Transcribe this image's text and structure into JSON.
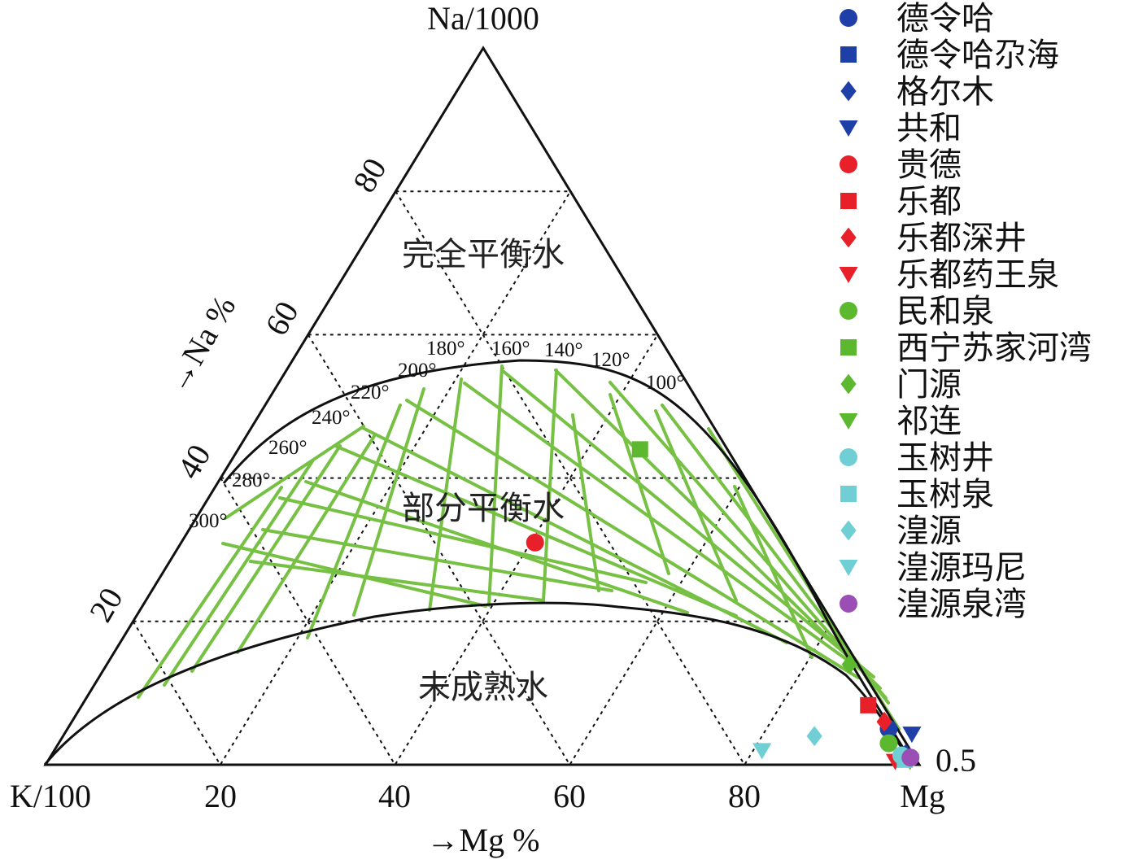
{
  "chart_data": {
    "type": "ternary-scatter",
    "vertex_labels": {
      "top": "Na/1000",
      "left": "K/100",
      "right": "Mg"
    },
    "axis_labels": {
      "bottom": "→Mg %",
      "left": "→Na %"
    },
    "bottom_ticks": [
      "20",
      "40",
      "60",
      "80"
    ],
    "left_ticks": [
      "20",
      "40",
      "60",
      "80"
    ],
    "corner_note": "0.5",
    "zone_labels": {
      "full": "完全平衡水",
      "partial": "部分平衡水",
      "immature": "未成熟水"
    },
    "isotherm_labels": [
      "300°",
      "280°",
      "260°",
      "240°",
      "220°",
      "200°",
      "180°",
      "160°",
      "140°",
      "120°",
      "100°"
    ],
    "grid_levels": [
      20,
      40,
      60,
      80
    ],
    "legend_position": "right",
    "colors": {
      "blue": "#1f3fa8",
      "red": "#e8202a",
      "green": "#5cb82e",
      "cyan": "#6fcfd4",
      "purple": "#9b4fb5",
      "isotherm": "#76c043"
    },
    "series": [
      {
        "name": "德令哈",
        "marker": "circle",
        "color": "#1f3fa8",
        "points": [
          [
            94,
            5
          ]
        ]
      },
      {
        "name": "德令哈尕海",
        "marker": "square",
        "color": "#1f3fa8",
        "points": [
          [
            97.5,
            1.2
          ]
        ]
      },
      {
        "name": "格尔木",
        "marker": "diamond",
        "color": "#1f3fa8",
        "points": [
          [
            97.7,
            1.5
          ]
        ]
      },
      {
        "name": "共和",
        "marker": "triangle-down",
        "color": "#1f3fa8",
        "points": [
          [
            97,
            4.3
          ]
        ]
      },
      {
        "name": "贵德",
        "marker": "circle",
        "color": "#e8202a",
        "points": [
          [
            40.5,
            31
          ]
        ]
      },
      {
        "name": "乐都",
        "marker": "square",
        "color": "#e8202a",
        "points": [
          [
            90,
            8.3
          ]
        ]
      },
      {
        "name": "乐都深井",
        "marker": "diamond",
        "color": "#e8202a",
        "points": [
          [
            93,
            6
          ]
        ]
      },
      {
        "name": "乐都药王泉",
        "marker": "triangle-down",
        "color": "#e8202a",
        "points": [
          [
            97,
            0.5
          ]
        ]
      },
      {
        "name": "民和泉",
        "marker": "circle",
        "color": "#5cb82e",
        "points": [
          [
            95,
            3
          ]
        ]
      },
      {
        "name": "西宁苏家河湾",
        "marker": "square",
        "color": "#5cb82e",
        "points": [
          [
            46,
            44
          ]
        ]
      },
      {
        "name": "门源",
        "marker": "diamond",
        "color": "#5cb82e",
        "points": [
          [
            85,
            14
          ]
        ]
      },
      {
        "name": "祁连",
        "marker": "triangle-down",
        "color": "#5cb82e",
        "points": [
          [
            98.7,
            0.5
          ]
        ]
      },
      {
        "name": "玉树井",
        "marker": "circle",
        "color": "#6fcfd4",
        "points": [
          [
            97.3,
            1.3
          ]
        ]
      },
      {
        "name": "玉树泉",
        "marker": "square",
        "color": "#6fcfd4",
        "points": [
          [
            98,
            0.7
          ]
        ]
      },
      {
        "name": "湟源",
        "marker": "diamond",
        "color": "#6fcfd4",
        "points": [
          [
            86,
            4
          ]
        ]
      },
      {
        "name": "湟源玛尼",
        "marker": "triangle-down",
        "color": "#6fcfd4",
        "points": [
          [
            81,
            2
          ]
        ]
      },
      {
        "name": "湟源泉湾",
        "marker": "circle",
        "color": "#9b4fb5",
        "points": [
          [
            98.5,
            1
          ]
        ]
      }
    ]
  }
}
